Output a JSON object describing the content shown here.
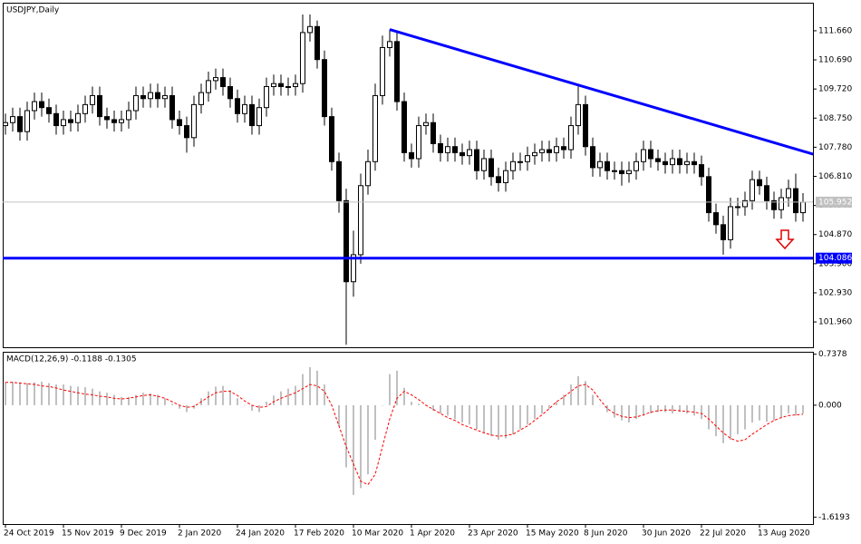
{
  "chart_data": [
    {
      "type": "candlestick",
      "title": "USDJPY,Daily",
      "color": "#000000",
      "categories": [
        "24 Oct 2019",
        null,
        null,
        null,
        null,
        null,
        null,
        null,
        "15 Nov 2019",
        null,
        null,
        null,
        null,
        null,
        null,
        null,
        "9 Dec 2019",
        null,
        null,
        null,
        null,
        null,
        null,
        null,
        "2 Jan 2020",
        null,
        null,
        null,
        null,
        null,
        null,
        null,
        "24 Jan 2020",
        null,
        null,
        null,
        null,
        null,
        null,
        null,
        "17 Feb 2020",
        null,
        null,
        null,
        null,
        null,
        null,
        null,
        "10 Mar 2020",
        null,
        null,
        null,
        null,
        null,
        null,
        null,
        "1 Apr 2020",
        null,
        null,
        null,
        null,
        null,
        null,
        null,
        "23 Apr 2020",
        null,
        null,
        null,
        null,
        null,
        null,
        null,
        "15 May 2020",
        null,
        null,
        null,
        null,
        null,
        null,
        null,
        "8 Jun 2020",
        null,
        null,
        null,
        null,
        null,
        null,
        null,
        "30 Jun 2020",
        null,
        null,
        null,
        null,
        null,
        null,
        null,
        "22 Jul 2020",
        null,
        null,
        null,
        null,
        null,
        null,
        null,
        "13 Aug 2020",
        null,
        null,
        null,
        null,
        null,
        null
      ],
      "open": [
        108.5,
        108.6,
        108.8,
        108.3,
        109.0,
        109.3,
        109.1,
        108.9,
        108.5,
        108.7,
        108.6,
        108.9,
        109.2,
        109.5,
        108.8,
        108.7,
        108.6,
        108.7,
        109.0,
        109.5,
        109.4,
        109.6,
        109.4,
        109.5,
        108.7,
        108.5,
        108.1,
        109.2,
        109.6,
        110.0,
        110.1,
        109.8,
        109.4,
        108.9,
        109.2,
        108.5,
        109.1,
        109.8,
        109.9,
        109.8,
        109.8,
        109.9,
        111.6,
        111.8,
        110.7,
        108.8,
        107.3,
        106.0,
        103.3,
        104.2,
        106.5,
        107.3,
        109.5,
        111.1,
        111.3,
        109.3,
        107.6,
        107.4,
        108.5,
        108.6,
        107.9,
        107.6,
        107.8,
        107.6,
        107.5,
        107.7,
        107.0,
        107.4,
        106.8,
        106.6,
        107.0,
        107.3,
        107.3,
        107.5,
        107.6,
        107.7,
        107.6,
        107.8,
        107.7,
        108.5,
        109.2,
        107.8,
        107.1,
        107.3,
        107.0,
        107.0,
        106.9,
        107.0,
        107.3,
        107.7,
        107.4,
        107.3,
        107.2,
        107.4,
        107.2,
        107.3,
        107.2,
        106.8,
        105.6,
        105.2,
        104.7,
        105.8,
        105.8,
        106.0,
        106.7,
        106.5,
        106.0,
        105.7,
        106.1,
        106.4,
        105.6
      ],
      "high": [
        108.9,
        109.1,
        109.1,
        109.3,
        109.6,
        109.6,
        109.4,
        109.2,
        109.0,
        109.0,
        109.2,
        109.5,
        109.8,
        109.8,
        109.1,
        109.0,
        109.0,
        109.3,
        109.8,
        109.8,
        109.9,
        109.9,
        109.8,
        109.8,
        109.0,
        108.8,
        109.5,
        109.9,
        110.3,
        110.4,
        110.4,
        110.1,
        109.7,
        109.5,
        109.5,
        109.4,
        110.1,
        110.2,
        110.2,
        110.1,
        110.2,
        112.2,
        112.2,
        112.0,
        111.0,
        109.1,
        107.6,
        106.4,
        105.0,
        106.9,
        107.7,
        109.9,
        111.5,
        111.7,
        111.6,
        109.6,
        107.9,
        108.8,
        108.9,
        108.9,
        108.2,
        108.1,
        108.1,
        107.9,
        108.0,
        108.0,
        107.7,
        107.7,
        107.1,
        107.3,
        107.6,
        107.6,
        107.8,
        107.9,
        108.0,
        108.0,
        108.1,
        108.1,
        108.8,
        109.8,
        109.5,
        108.1,
        107.6,
        107.6,
        107.3,
        107.3,
        107.3,
        107.6,
        108.0,
        108.0,
        107.7,
        107.6,
        107.7,
        107.7,
        107.6,
        107.6,
        107.5,
        107.1,
        105.9,
        105.5,
        106.1,
        106.1,
        106.3,
        107.0,
        107.0,
        106.8,
        106.3,
        106.4,
        106.7,
        106.9,
        106.25
      ],
      "low": [
        108.2,
        108.3,
        108.0,
        108.0,
        108.7,
        108.8,
        108.6,
        108.2,
        108.2,
        108.3,
        108.3,
        108.6,
        108.9,
        108.5,
        108.4,
        108.3,
        108.3,
        108.4,
        108.7,
        109.1,
        109.1,
        109.1,
        109.1,
        108.4,
        108.2,
        107.6,
        107.8,
        108.9,
        109.3,
        109.7,
        109.5,
        109.1,
        108.6,
        108.6,
        108.2,
        108.2,
        108.8,
        109.5,
        109.5,
        109.5,
        109.5,
        109.6,
        111.3,
        110.4,
        108.5,
        107.0,
        105.6,
        101.2,
        102.8,
        103.9,
        106.2,
        107.0,
        109.2,
        110.8,
        109.0,
        107.3,
        107.1,
        107.1,
        108.2,
        107.6,
        107.3,
        107.3,
        107.3,
        107.2,
        107.2,
        106.7,
        106.7,
        106.5,
        106.3,
        106.3,
        106.7,
        107.0,
        107.0,
        107.2,
        107.3,
        107.3,
        107.3,
        107.4,
        107.4,
        108.2,
        107.5,
        106.8,
        106.8,
        106.7,
        106.7,
        106.5,
        106.6,
        106.7,
        107.0,
        107.1,
        107.0,
        106.9,
        106.9,
        106.9,
        106.9,
        106.9,
        106.5,
        105.3,
        104.9,
        104.2,
        104.4,
        105.5,
        105.5,
        105.7,
        106.2,
        105.7,
        105.4,
        105.4,
        105.8,
        105.3,
        105.3
      ],
      "close": [
        108.6,
        108.8,
        108.3,
        109.0,
        109.3,
        109.1,
        108.9,
        108.5,
        108.7,
        108.6,
        108.9,
        109.2,
        109.5,
        108.8,
        108.7,
        108.6,
        108.7,
        109.0,
        109.5,
        109.4,
        109.6,
        109.4,
        109.5,
        108.7,
        108.5,
        108.1,
        109.2,
        109.6,
        110.0,
        110.1,
        109.8,
        109.4,
        108.9,
        109.2,
        108.5,
        109.1,
        109.8,
        109.9,
        109.8,
        109.8,
        109.9,
        111.6,
        111.8,
        110.7,
        108.8,
        107.3,
        106.0,
        103.3,
        104.2,
        106.5,
        107.3,
        109.5,
        111.1,
        111.3,
        109.3,
        107.6,
        107.4,
        108.5,
        108.6,
        107.9,
        107.6,
        107.8,
        107.6,
        107.5,
        107.7,
        107.0,
        107.4,
        106.8,
        106.6,
        107.0,
        107.3,
        107.3,
        107.5,
        107.6,
        107.7,
        107.6,
        107.8,
        107.7,
        108.5,
        109.2,
        107.8,
        107.1,
        107.3,
        107.0,
        107.0,
        106.9,
        107.0,
        107.3,
        107.7,
        107.4,
        107.3,
        107.2,
        107.4,
        107.2,
        107.3,
        107.2,
        106.8,
        105.6,
        105.2,
        104.7,
        105.8,
        105.8,
        106.0,
        106.7,
        106.5,
        106.0,
        105.7,
        106.1,
        106.4,
        105.6,
        105.95
      ],
      "ylim": [
        101.117,
        112.564
      ],
      "yticks": [
        {
          "value": 111.66,
          "label": "111.660"
        },
        {
          "value": 110.69,
          "label": "110.690"
        },
        {
          "value": 109.72,
          "label": "109.720"
        },
        {
          "value": 108.75,
          "label": "108.750"
        },
        {
          "value": 107.78,
          "label": "107.780"
        },
        {
          "value": 106.81,
          "label": "106.810"
        },
        {
          "value": 105.84,
          "label": "105.840"
        },
        {
          "value": 104.87,
          "label": "104.870"
        },
        {
          "value": 103.9,
          "label": "103.900"
        },
        {
          "value": 102.93,
          "label": "102.930"
        },
        {
          "value": 101.96,
          "label": "101.960"
        }
      ],
      "hlines": [
        {
          "value": 105.952,
          "label": "105.952",
          "color": "#c0c0c0"
        },
        {
          "value": 104.086,
          "label": "104.086",
          "color": "#0000ff"
        }
      ],
      "trendline": {
        "color": "#0000ff",
        "x": [
          53,
          111.4
        ],
        "y": [
          111.7,
          107.55
        ]
      }
    },
    {
      "type": "macd",
      "title": "MACD(12,26,9) -0.1188 -0.1305",
      "color": "#c0c0c0",
      "signal_color": "#ff0000",
      "histogram": [
        0.33,
        0.34,
        0.33,
        0.32,
        0.33,
        0.34,
        0.32,
        0.3,
        0.3,
        0.28,
        0.27,
        0.26,
        0.24,
        0.2,
        0.18,
        0.15,
        0.12,
        0.12,
        0.15,
        0.18,
        0.17,
        0.15,
        0.1,
        0.02,
        -0.05,
        -0.1,
        -0.05,
        0.1,
        0.2,
        0.27,
        0.28,
        0.22,
        0.1,
        0.0,
        -0.08,
        -0.1,
        0.05,
        0.14,
        0.2,
        0.24,
        0.28,
        0.45,
        0.55,
        0.5,
        0.3,
        0.0,
        -0.3,
        -0.9,
        -1.3,
        -1.2,
        -1.0,
        -0.5,
        0.0,
        0.45,
        0.5,
        0.25,
        0.05,
        0.02,
        0.0,
        -0.08,
        -0.12,
        -0.15,
        -0.2,
        -0.25,
        -0.28,
        -0.35,
        -0.4,
        -0.45,
        -0.5,
        -0.48,
        -0.42,
        -0.35,
        -0.28,
        -0.2,
        -0.12,
        -0.05,
        0.05,
        0.15,
        0.3,
        0.42,
        0.35,
        0.15,
        0.0,
        -0.1,
        -0.18,
        -0.22,
        -0.25,
        -0.2,
        -0.15,
        -0.12,
        -0.1,
        -0.1,
        -0.12,
        -0.1,
        -0.12,
        -0.15,
        -0.2,
        -0.35,
        -0.45,
        -0.55,
        -0.5,
        -0.42,
        -0.35,
        -0.25,
        -0.22,
        -0.24,
        -0.22,
        -0.18,
        -0.12,
        -0.15,
        -0.1188
      ],
      "signal": [
        0.33,
        0.33,
        0.32,
        0.31,
        0.3,
        0.28,
        0.27,
        0.25,
        0.22,
        0.2,
        0.18,
        0.16,
        0.15,
        0.13,
        0.12,
        0.1,
        0.09,
        0.1,
        0.12,
        0.14,
        0.15,
        0.13,
        0.1,
        0.05,
        0.0,
        -0.03,
        -0.02,
        0.05,
        0.12,
        0.18,
        0.2,
        0.2,
        0.14,
        0.06,
        0.0,
        -0.03,
        -0.02,
        0.05,
        0.1,
        0.14,
        0.18,
        0.24,
        0.3,
        0.28,
        0.2,
        0.0,
        -0.3,
        -0.6,
        -0.85,
        -1.1,
        -1.15,
        -1.0,
        -0.6,
        -0.2,
        0.1,
        0.2,
        0.15,
        0.08,
        0.0,
        -0.06,
        -0.12,
        -0.18,
        -0.22,
        -0.28,
        -0.32,
        -0.36,
        -0.4,
        -0.43,
        -0.45,
        -0.44,
        -0.42,
        -0.36,
        -0.3,
        -0.22,
        -0.14,
        -0.05,
        0.05,
        0.12,
        0.2,
        0.28,
        0.3,
        0.22,
        0.08,
        -0.05,
        -0.12,
        -0.16,
        -0.18,
        -0.17,
        -0.14,
        -0.1,
        -0.08,
        -0.07,
        -0.07,
        -0.08,
        -0.09,
        -0.1,
        -0.12,
        -0.2,
        -0.3,
        -0.4,
        -0.48,
        -0.52,
        -0.5,
        -0.42,
        -0.35,
        -0.28,
        -0.22,
        -0.18,
        -0.15,
        -0.14,
        -0.1305
      ],
      "ylim": [
        -1.72,
        0.76
      ],
      "yticks": [
        0.7378,
        {
          "value": 0,
          "label": "0.000"
        },
        -1.6193
      ]
    }
  ]
}
